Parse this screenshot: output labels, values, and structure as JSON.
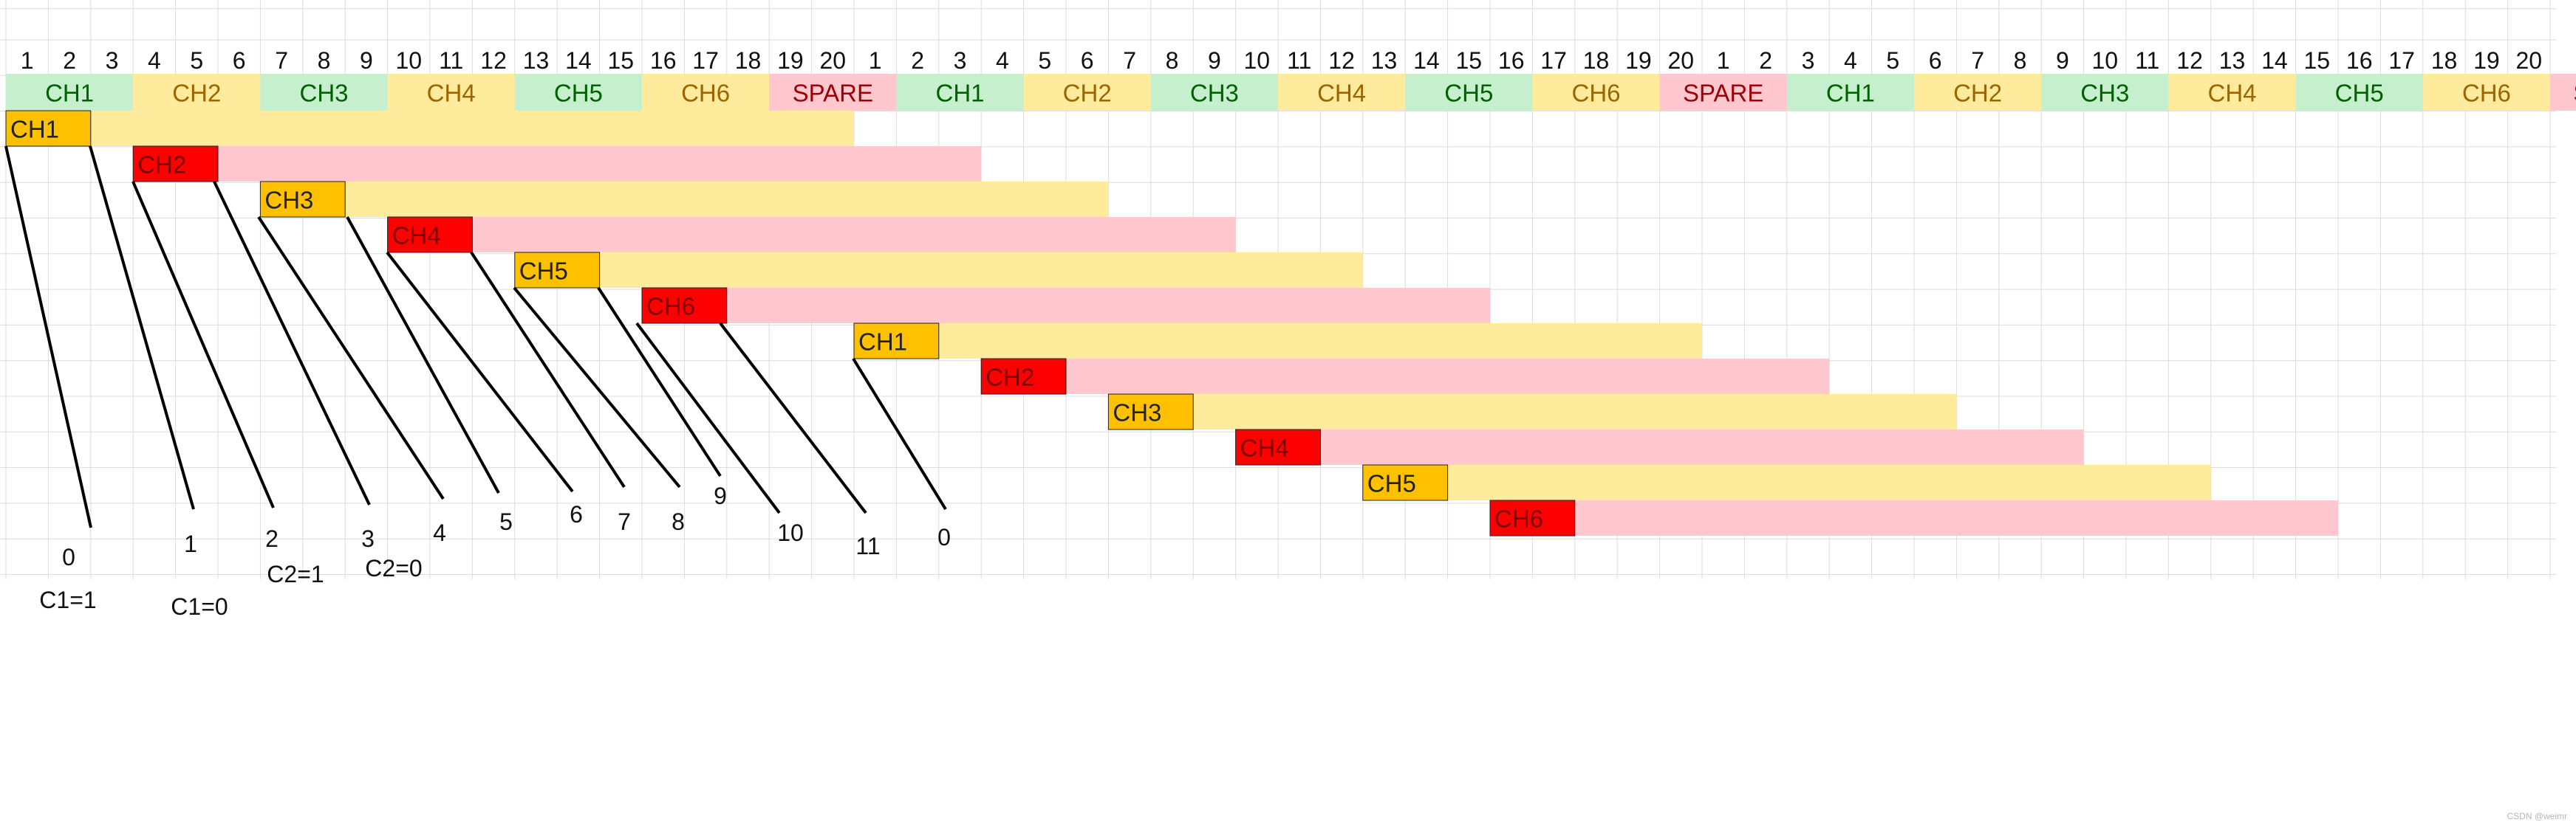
{
  "colors": {
    "header_green": "#c6efce",
    "header_yellow": "#ffeb9c",
    "header_pink": "#ffc7ce",
    "text_green": "#006100",
    "text_olive": "#9c6500",
    "text_red": "#9c0006",
    "tag_orange": "#ffc000",
    "tag_red": "#ff0000",
    "bar_yellow": "#ffeb9c",
    "bar_pink": "#ffc7ce"
  },
  "column_numbers": [
    "1",
    "2",
    "3",
    "4",
    "5",
    "6",
    "7",
    "8",
    "9",
    "10",
    "11",
    "12",
    "13",
    "14",
    "15",
    "16",
    "17",
    "18",
    "19",
    "20",
    "1",
    "2",
    "3",
    "4",
    "5",
    "6",
    "7",
    "8",
    "9",
    "10",
    "11",
    "12",
    "13",
    "14",
    "15",
    "16",
    "17",
    "18",
    "19",
    "20",
    "1",
    "2",
    "3",
    "4",
    "5",
    "6",
    "7",
    "8",
    "9",
    "10",
    "11",
    "12",
    "13",
    "14",
    "15",
    "16",
    "17",
    "18",
    "19",
    "20"
  ],
  "header_cells": [
    {
      "label": "CH1",
      "style": "green"
    },
    {
      "label": "CH2",
      "style": "yellow"
    },
    {
      "label": "CH3",
      "style": "green"
    },
    {
      "label": "CH4",
      "style": "yellow"
    },
    {
      "label": "CH5",
      "style": "green"
    },
    {
      "label": "CH6",
      "style": "yellow"
    },
    {
      "label": "SPARE",
      "style": "pink"
    },
    {
      "label": "CH1",
      "style": "green"
    },
    {
      "label": "CH2",
      "style": "yellow"
    },
    {
      "label": "CH3",
      "style": "green"
    },
    {
      "label": "CH4",
      "style": "yellow"
    },
    {
      "label": "CH5",
      "style": "green"
    },
    {
      "label": "CH6",
      "style": "yellow"
    },
    {
      "label": "SPARE",
      "style": "pink"
    },
    {
      "label": "CH1",
      "style": "green"
    },
    {
      "label": "CH2",
      "style": "yellow"
    },
    {
      "label": "CH3",
      "style": "green"
    },
    {
      "label": "CH4",
      "style": "yellow"
    },
    {
      "label": "CH5",
      "style": "green"
    },
    {
      "label": "CH6",
      "style": "yellow"
    },
    {
      "label": "SPARE",
      "style": "pink"
    }
  ],
  "blocks": [
    {
      "label": "CH1",
      "tag": "orange",
      "bar": "yellow"
    },
    {
      "label": "CH2",
      "tag": "red",
      "bar": "pink"
    },
    {
      "label": "CH3",
      "tag": "orange",
      "bar": "yellow"
    },
    {
      "label": "CH4",
      "tag": "red",
      "bar": "pink"
    },
    {
      "label": "CH5",
      "tag": "orange",
      "bar": "yellow"
    },
    {
      "label": "CH6",
      "tag": "red",
      "bar": "pink"
    },
    {
      "label": "CH1",
      "tag": "orange",
      "bar": "yellow"
    },
    {
      "label": "CH2",
      "tag": "red",
      "bar": "pink"
    },
    {
      "label": "CH3",
      "tag": "orange",
      "bar": "yellow"
    },
    {
      "label": "CH4",
      "tag": "red",
      "bar": "pink"
    },
    {
      "label": "CH5",
      "tag": "orange",
      "bar": "yellow"
    },
    {
      "label": "CH6",
      "tag": "red",
      "bar": "pink"
    }
  ],
  "lead_labels": [
    "0",
    "1",
    "2",
    "3",
    "4",
    "5",
    "6",
    "7",
    "8",
    "9",
    "10",
    "11",
    "0"
  ],
  "notes": [
    "C1=1",
    "C1=0",
    "C2=1",
    "C2=0"
  ],
  "watermark": "CSDN @weimr"
}
